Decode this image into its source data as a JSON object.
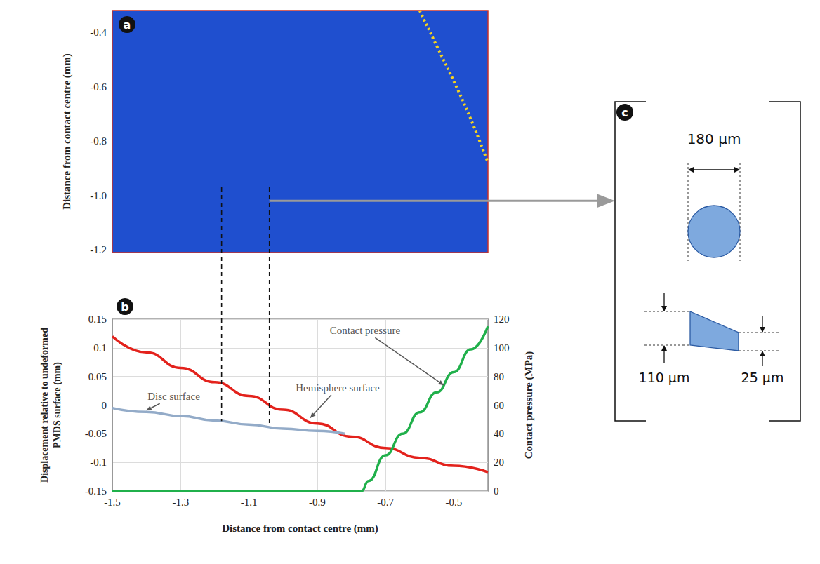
{
  "chart_data": [
    {
      "panel": "a",
      "type": "image",
      "ylabel": "Distance from contact centre (mm)",
      "xlim": [
        -1.5,
        -0.4
      ],
      "ylim": [
        -1.21,
        -0.32
      ],
      "yticks": [
        -1.2,
        {
          "value": -1,
          "label": "-1.0"
        },
        -0.8,
        -0.6,
        -0.4
      ],
      "tick_labels": "y",
      "grid": false,
      "series": [
        {
          "color": "#f5d320",
          "line_style": "dotted",
          "x": [
            -0.6,
            -0.55,
            -0.5,
            -0.45,
            -0.4
          ],
          "values": [
            -0.32,
            -0.45,
            -0.58,
            -0.72,
            -0.88
          ]
        }
      ]
    },
    {
      "panel": "b",
      "type": "line",
      "xlabel": "Distance from contact centre (mm)",
      "ylabel": "Displacement relative to undeformed PMDS surface (mm)",
      "y2label": "Contact pressure (MPa)",
      "xlim": [
        -1.5,
        -0.4
      ],
      "xticks": [
        -1.5,
        -1.3,
        -1.1,
        -0.9,
        -0.7,
        -0.5
      ],
      "ylim": [
        -0.15,
        0.15
      ],
      "yticks": [
        -0.15,
        -0.1,
        -0.05,
        0,
        0.05,
        0.1,
        0.15
      ],
      "y2lim": [
        0,
        120
      ],
      "y2ticks": [
        0,
        20,
        40,
        60,
        80,
        100,
        120
      ],
      "grid": true,
      "series": [
        {
          "color": "#e3221c",
          "line_style": "solid",
          "x": [
            -1.5,
            -1.4,
            -1.3,
            -1.2,
            -1.1,
            -1.0,
            -0.9,
            -0.8,
            -0.7,
            -0.6,
            -0.5,
            -0.4
          ],
          "values": [
            0.12,
            0.092,
            0.065,
            0.04,
            0.016,
            -0.008,
            -0.032,
            -0.055,
            -0.075,
            -0.092,
            -0.106,
            -0.117
          ]
        },
        {
          "color": "#93abc8",
          "line_style": "solid",
          "x": [
            -1.5,
            -1.4,
            -1.3,
            -1.2,
            -1.1,
            -1.0,
            -0.9,
            -0.82
          ],
          "values": [
            -0.005,
            -0.012,
            -0.019,
            -0.027,
            -0.034,
            -0.041,
            -0.045,
            -0.05
          ]
        },
        {
          "color": "#20b04b",
          "line_style": "solid",
          "axis": "y2",
          "x": [
            -1.5,
            -0.77,
            -0.75,
            -0.7,
            -0.65,
            -0.6,
            -0.55,
            -0.5,
            -0.45,
            -0.4
          ],
          "values": [
            0,
            0,
            7,
            25,
            40,
            55,
            69,
            83,
            99,
            115
          ]
        }
      ],
      "annotations": [
        {
          "text": "Contact pressure",
          "x": -0.76,
          "y": 0.13,
          "arrow_to": [
            -0.53,
            0.035
          ]
        },
        {
          "text": "Hemisphere surface",
          "x": -0.84,
          "y": 0.03,
          "arrow_to": [
            -0.92,
            -0.022
          ]
        },
        {
          "text": "Disc surface",
          "x": -1.32,
          "y": 0.015,
          "arrow_to": [
            -1.4,
            -0.009
          ]
        }
      ]
    }
  ],
  "connectors": {
    "guide_lines": [
      {
        "x": -1.18,
        "from_y": -0.97,
        "to_y": -0.028
      },
      {
        "x": -1.04,
        "from_y": -0.97,
        "to_y": -0.038
      }
    ],
    "arrow_from": [
      -1.04,
      -1.02
    ]
  },
  "diagram": {
    "panel": "c",
    "width_label": "180 μm",
    "left_height_label": "110 μm",
    "right_height_label": "25 μm"
  }
}
